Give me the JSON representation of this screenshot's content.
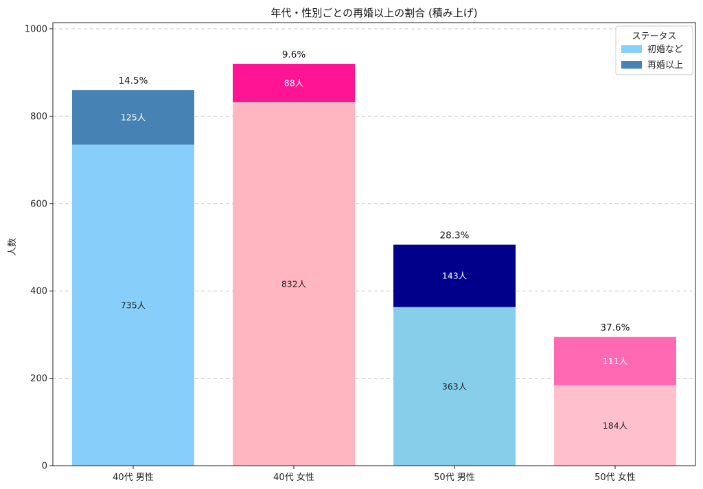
{
  "chart_data": {
    "type": "bar",
    "stacked": true,
    "title": "年代・性別ごとの再婚以上の割合 (積み上げ)",
    "xlabel": "",
    "ylabel": "人数",
    "ylim": [
      0,
      1000
    ],
    "yticks": [
      0,
      200,
      400,
      600,
      800,
      1000
    ],
    "grid": "y-dashed",
    "categories": [
      "40代 男性",
      "40代 女性",
      "50代 男性",
      "50代 女性"
    ],
    "series": [
      {
        "name": "初婚など",
        "values": [
          735,
          832,
          363,
          184
        ],
        "labels": [
          "735人",
          "832人",
          "363人",
          "184人"
        ],
        "colors": [
          "#87CEFA",
          "#FFB6C1",
          "#87CEEB",
          "#FFC0CB"
        ],
        "label_color": "#222222"
      },
      {
        "name": "再婚以上",
        "values": [
          125,
          88,
          143,
          111
        ],
        "labels": [
          "125人",
          "88人",
          "143人",
          "111人"
        ],
        "colors": [
          "#4682B4",
          "#FF1493",
          "#00008B",
          "#FF69B4"
        ],
        "label_color": "#ffffff"
      }
    ],
    "percent_labels": [
      "14.5%",
      "9.6%",
      "28.3%",
      "37.6%"
    ],
    "legend": {
      "title": "ステータス",
      "placement": "top-right",
      "entries": [
        {
          "label": "初婚など",
          "color": "#87CEFA"
        },
        {
          "label": "再婚以上",
          "color": "#4682B4"
        }
      ]
    }
  }
}
